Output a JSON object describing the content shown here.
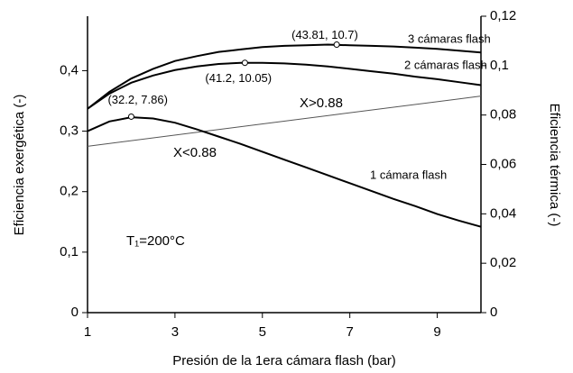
{
  "chart_data": {
    "type": "line",
    "xlabel": "Presión de la 1era cámara flash (bar)",
    "ylabel": "Eficiencia exergética (-)",
    "y2label": "Eficiencia térmica (-)",
    "x": [
      1,
      1.5,
      2,
      2.5,
      3,
      3.5,
      4,
      4.5,
      5,
      5.5,
      6,
      6.5,
      7,
      7.5,
      8,
      8.5,
      9,
      9.5,
      10
    ],
    "series": [
      {
        "name": "3 cámaras flash",
        "color": "#000000",
        "values": [
          0.337,
          0.365,
          0.387,
          0.403,
          0.416,
          0.424,
          0.431,
          0.435,
          0.439,
          0.441,
          0.442,
          0.443,
          0.442,
          0.441,
          0.44,
          0.438,
          0.436,
          0.433,
          0.43
        ]
      },
      {
        "name": "2 cámaras flash",
        "color": "#000000",
        "values": [
          0.337,
          0.362,
          0.38,
          0.392,
          0.401,
          0.407,
          0.411,
          0.413,
          0.413,
          0.412,
          0.41,
          0.407,
          0.403,
          0.399,
          0.395,
          0.39,
          0.386,
          0.381,
          0.376
        ]
      },
      {
        "name": "1 cámara flash",
        "color": "#000000",
        "values": [
          0.3,
          0.316,
          0.323,
          0.321,
          0.314,
          0.303,
          0.291,
          0.279,
          0.266,
          0.253,
          0.24,
          0.227,
          0.214,
          0.201,
          0.188,
          0.176,
          0.163,
          0.152,
          0.142
        ]
      }
    ],
    "divider": {
      "x": [
        1,
        10
      ],
      "values": [
        0.275,
        0.358
      ],
      "color": "#555555",
      "above_label": "X>0.88",
      "below_label": "X<0.88"
    },
    "annotations": [
      {
        "x": 2,
        "y": 0.324,
        "text": "(32.2, 7.86)"
      },
      {
        "x": 4.6,
        "y": 0.413,
        "text": "(41.2, 10.05)"
      },
      {
        "x": 6.7,
        "y": 0.443,
        "text": "(43.81, 10.7)"
      }
    ],
    "note": "T₁=200°C",
    "xlim": [
      1,
      10
    ],
    "xticks": [
      1,
      3,
      5,
      7,
      9
    ],
    "ylim": [
      0,
      0.49
    ],
    "yticks": [
      0,
      {
        "value": 0.1,
        "label": "0,1"
      },
      {
        "value": 0.2,
        "label": "0,2"
      },
      {
        "value": 0.3,
        "label": "0,3"
      },
      {
        "value": 0.4,
        "label": "0,4"
      }
    ],
    "y2lim": [
      0,
      0.12
    ],
    "y2ticks": [
      0,
      {
        "value": 0.02,
        "label": "0,02"
      },
      {
        "value": 0.04,
        "label": "0,04"
      },
      {
        "value": 0.06,
        "label": "0,06"
      },
      {
        "value": 0.08,
        "label": "0,08"
      },
      {
        "value": 0.1,
        "label": "0,1"
      },
      {
        "value": 0.12,
        "label": "0,12"
      }
    ]
  }
}
